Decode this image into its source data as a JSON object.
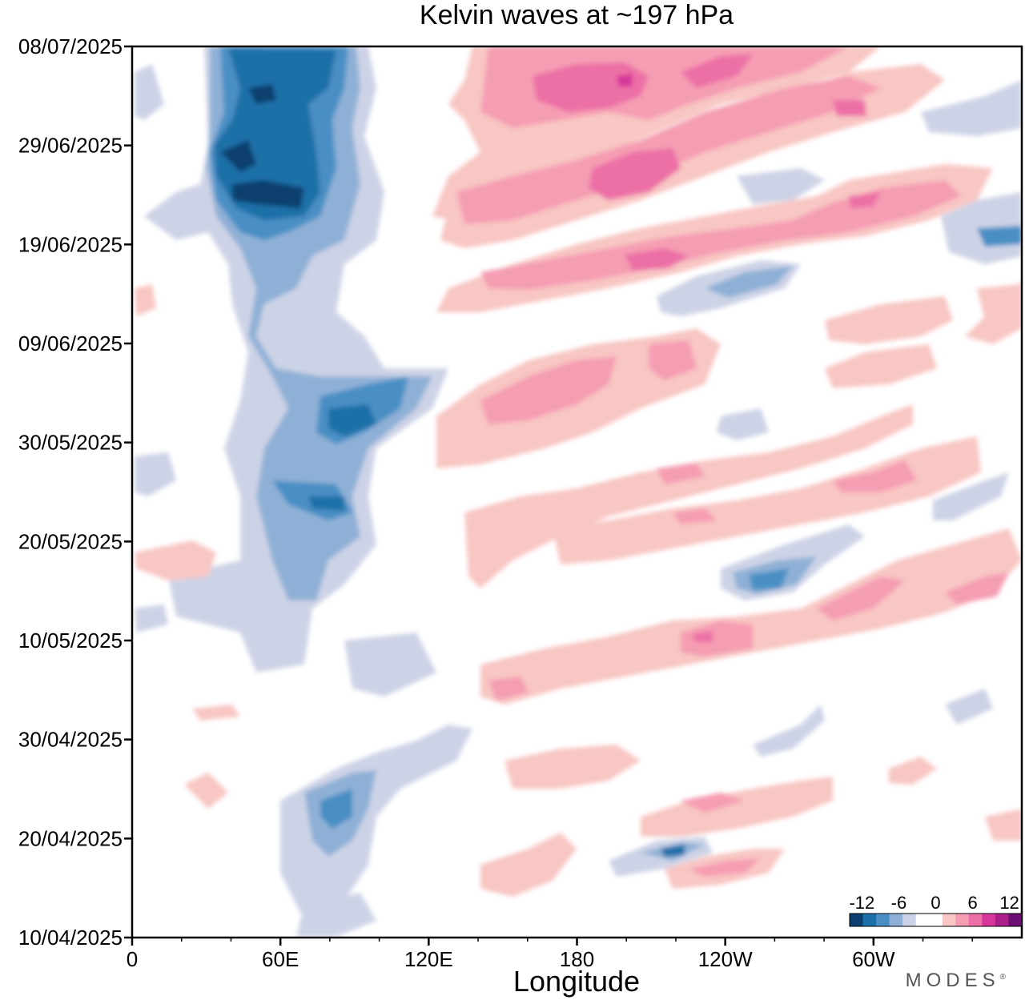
{
  "chart_data": {
    "type": "heatmap",
    "title": "Kelvin waves at ~197 hPa",
    "xlabel": "Longitude",
    "ylabel": "",
    "x_ticks": [
      "0",
      "60E",
      "120E",
      "180",
      "120W",
      "60W"
    ],
    "x_tick_values": [
      0,
      60,
      120,
      180,
      240,
      300
    ],
    "x_range": [
      0,
      360
    ],
    "y_ticks": [
      "08/07/2025",
      "29/06/2025",
      "19/06/2025",
      "09/06/2025",
      "30/05/2025",
      "20/05/2025",
      "10/05/2025",
      "30/04/2025",
      "20/04/2025",
      "10/04/2025"
    ],
    "y_range": [
      "10/04/2025",
      "08/07/2025"
    ],
    "colorbar": {
      "labels": [
        "-12",
        "-6",
        "0",
        "6",
        "12"
      ],
      "label_values": [
        -12,
        -6,
        0,
        6,
        12
      ],
      "range": [
        -14,
        14
      ],
      "colors": [
        "#0b3f6e",
        "#1c6fa8",
        "#4a8fc4",
        "#8fb0d6",
        "#cdd3e6",
        "#ffffff",
        "#ffffff",
        "#f8c6c3",
        "#f59db2",
        "#ec6fa6",
        "#d6379a",
        "#a9208a",
        "#6b0f73"
      ]
    },
    "features": [
      {
        "sign": "negative",
        "peak": -12,
        "lon": [
          35,
          95
        ],
        "dates": [
          "10/05/2025",
          "08/07/2025"
        ]
      },
      {
        "sign": "negative",
        "peak": -9,
        "lon": [
          60,
          130
        ],
        "dates": [
          "20/04/2025",
          "30/04/2025"
        ]
      },
      {
        "sign": "positive",
        "peak": 11,
        "lon": [
          130,
          330
        ],
        "dates": [
          "09/06/2025",
          "08/07/2025"
        ]
      },
      {
        "sign": "positive",
        "peak": 6,
        "lon": [
          130,
          330
        ],
        "dates": [
          "20/05/2025",
          "09/06/2025"
        ]
      },
      {
        "sign": "positive",
        "peak": 7,
        "lon": [
          150,
          360
        ],
        "dates": [
          "30/04/2025",
          "20/05/2025"
        ]
      },
      {
        "sign": "positive",
        "peak": 7,
        "lon": [
          210,
          300
        ],
        "dates": [
          "10/04/2025",
          "20/04/2025"
        ]
      },
      {
        "sign": "negative",
        "peak": -9,
        "lon": [
          240,
          310
        ],
        "dates": [
          "10/05/2025",
          "20/05/2025"
        ]
      }
    ]
  },
  "branding": {
    "logo_text": "MODES",
    "logo_mark": "®"
  }
}
